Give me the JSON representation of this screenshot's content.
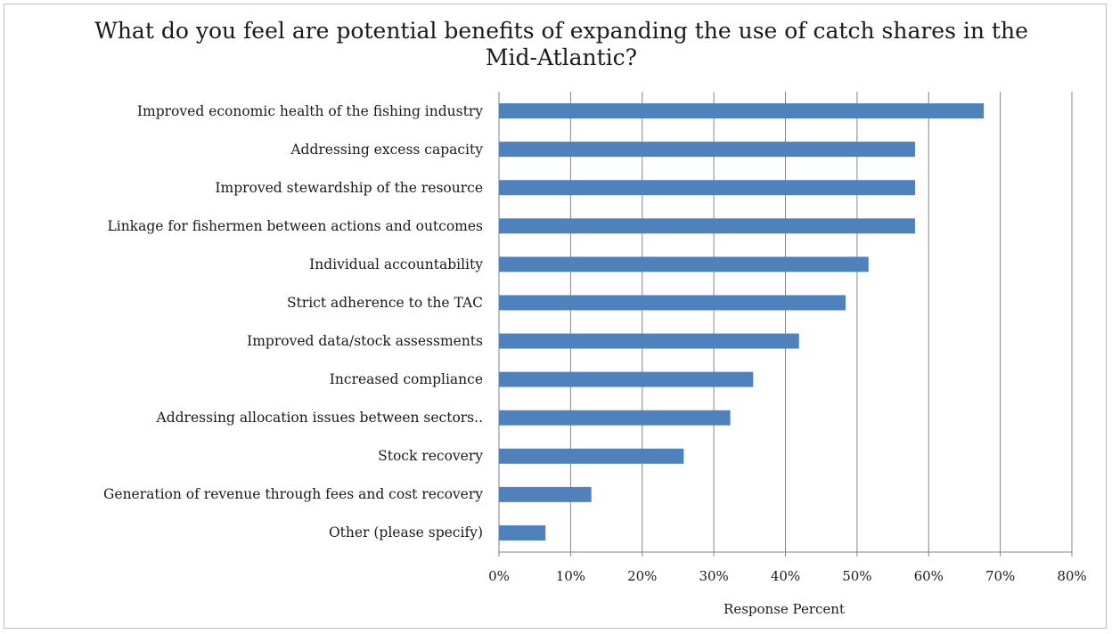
{
  "chart_data": {
    "type": "bar",
    "orientation": "horizontal",
    "title": "What do you feel are potential benefits of expanding the use of catch shares in the Mid-Atlantic?",
    "xlabel": "Response Percent",
    "ylabel": "",
    "xlim": [
      0,
      80
    ],
    "x_ticks": [
      "0%",
      "10%",
      "20%",
      "30%",
      "40%",
      "50%",
      "60%",
      "70%",
      "80%"
    ],
    "grid": "vertical",
    "bar_color": "#4f81bd",
    "categories": [
      "Improved economic health of the fishing industry",
      "Addressing excess capacity",
      "Improved stewardship of the resource",
      "Linkage for fishermen between actions and outcomes",
      "Individual accountability",
      "Strict adherence to the TAC",
      "Improved data/stock assessments",
      "Increased compliance",
      "Addressing allocation issues between sectors..",
      "Stock recovery",
      "Generation of revenue through fees and cost recovery",
      "Other (please specify)"
    ],
    "values": [
      67.7,
      58.1,
      58.1,
      58.1,
      51.6,
      48.4,
      41.9,
      35.5,
      32.3,
      25.8,
      12.9,
      6.5
    ]
  }
}
